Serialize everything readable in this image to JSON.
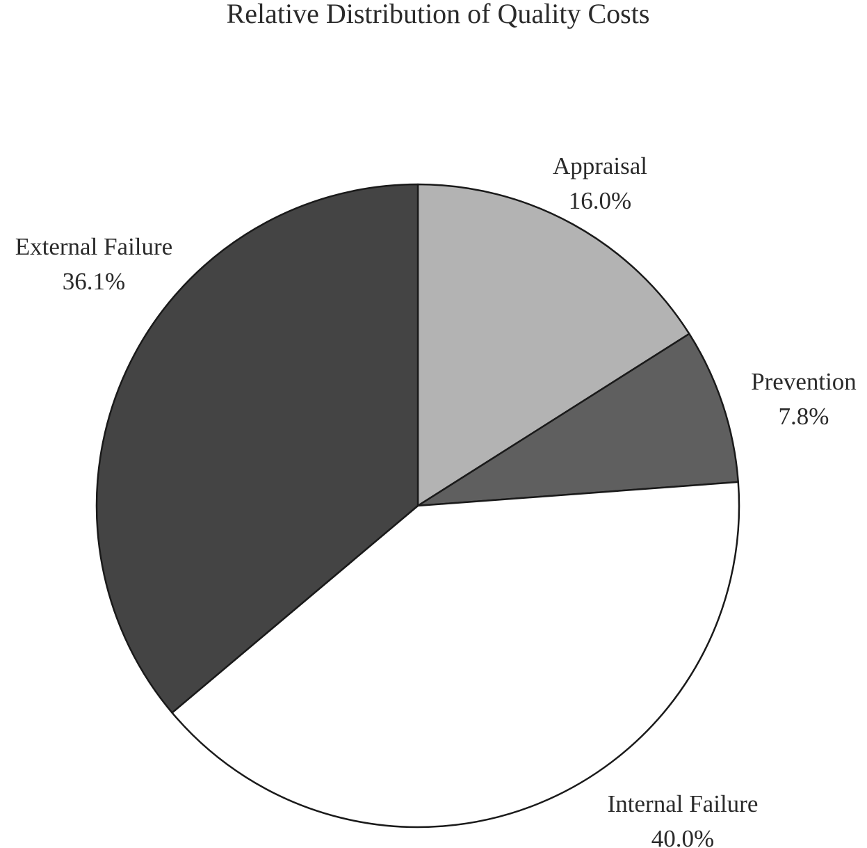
{
  "chart_data": {
    "type": "pie",
    "title": "Relative Distribution of Quality Costs",
    "slices": [
      {
        "label": "Appraisal",
        "value": 16.0,
        "value_label": "16.0%",
        "color": "#b3b3b3"
      },
      {
        "label": "Prevention",
        "value": 7.8,
        "value_label": "7.8%",
        "color": "#5f5f5f"
      },
      {
        "label": "Internal Failure",
        "value": 40.0,
        "value_label": "40.0%",
        "color": "#ffffff"
      },
      {
        "label": "External Failure",
        "value": 36.1,
        "value_label": "36.1%",
        "color": "#444444"
      }
    ],
    "start_angle_deg": 0,
    "direction": "clockwise",
    "legend": "none",
    "outline_color": "#1a1a1a"
  }
}
